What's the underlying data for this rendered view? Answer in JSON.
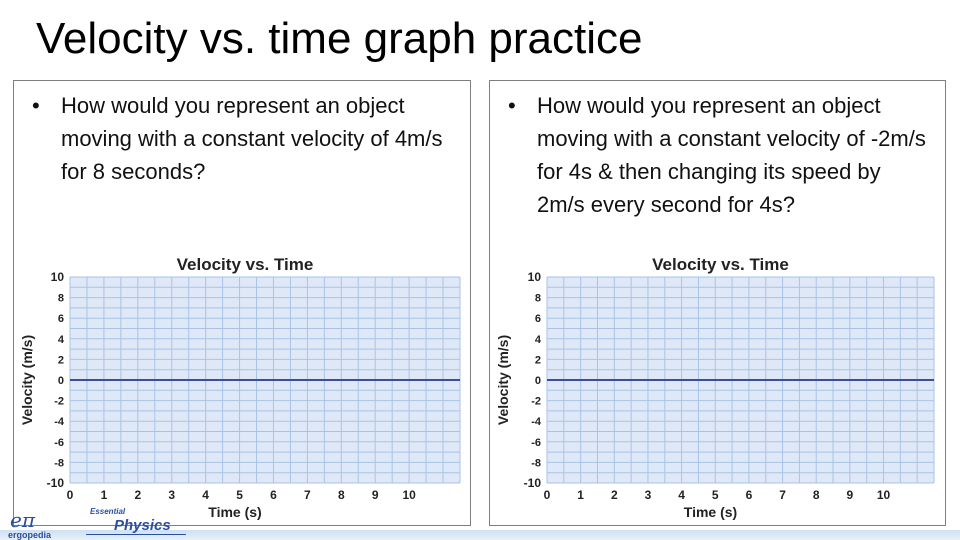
{
  "slide": {
    "title": "Velocity vs. time graph practice"
  },
  "panels": [
    {
      "bullet": "•",
      "question": "How would you represent an object moving with a constant velocity of 4m/s for 8 seconds?"
    },
    {
      "bullet": "•",
      "question": "How would you represent an object moving with a constant velocity of -2m/s for 4s & then changing its speed by 2m/s every second for 4s?"
    }
  ],
  "chart_data": [
    {
      "type": "line",
      "title": "Velocity vs. Time",
      "xlabel": "Time (s)",
      "ylabel": "Velocity (m/s)",
      "xlim": [
        0,
        11.5
      ],
      "ylim": [
        -10,
        10
      ],
      "x_ticks": [
        0,
        1,
        2,
        3,
        4,
        5,
        6,
        7,
        8,
        9,
        10
      ],
      "y_ticks": [
        10,
        8,
        6,
        4,
        2,
        0,
        -2,
        -4,
        -6,
        -8,
        -10
      ],
      "grid": true,
      "plot_background": "#dfe8f6",
      "grid_color": "#a9c3e8",
      "zero_line_color": "#3c4d9a",
      "series": []
    },
    {
      "type": "line",
      "title": "Velocity vs. Time",
      "xlabel": "Time (s)",
      "ylabel": "Velocity (m/s)",
      "xlim": [
        0,
        11.5
      ],
      "ylim": [
        -10,
        10
      ],
      "x_ticks": [
        0,
        1,
        2,
        3,
        4,
        5,
        6,
        7,
        8,
        9,
        10
      ],
      "y_ticks": [
        10,
        8,
        6,
        4,
        2,
        0,
        -2,
        -4,
        -6,
        -8,
        -10
      ],
      "grid": true,
      "plot_background": "#dfe8f6",
      "grid_color": "#a9c3e8",
      "zero_line_color": "#3c4d9a",
      "series": []
    }
  ],
  "branding": {
    "logo_symbol": "eπ",
    "logo_word": "ergopedia",
    "product_small": "Essential",
    "product_big": "Physics"
  }
}
